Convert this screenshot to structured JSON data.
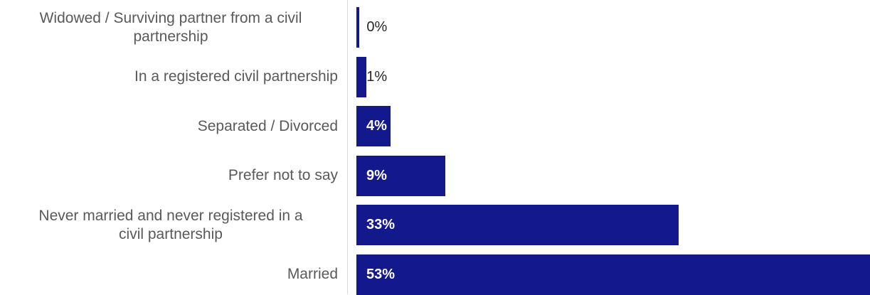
{
  "chart_data": {
    "type": "bar",
    "orientation": "horizontal",
    "categories": [
      "Widowed / Surviving partner from a civil partnership",
      "In a registered civil partnership",
      "Separated / Divorced",
      "Prefer not to say",
      "Never married and never registered in a civil partnership",
      "Married"
    ],
    "category_lines": [
      [
        "Widowed / Surviving partner from a civil",
        "partnership"
      ],
      [
        "In a registered civil partnership"
      ],
      [
        "Separated / Divorced"
      ],
      [
        "Prefer not to say"
      ],
      [
        "Never married and never registered in a",
        "civil partnership"
      ],
      [
        "Married"
      ]
    ],
    "values": [
      0.4,
      1.3,
      4.4,
      11.4,
      41.3,
      65.8
    ],
    "value_labels": [
      "0%",
      "1%",
      "4%",
      "9%",
      "33%",
      "53%"
    ],
    "bar_color": "#13198c",
    "grid": false,
    "legend": "none"
  }
}
